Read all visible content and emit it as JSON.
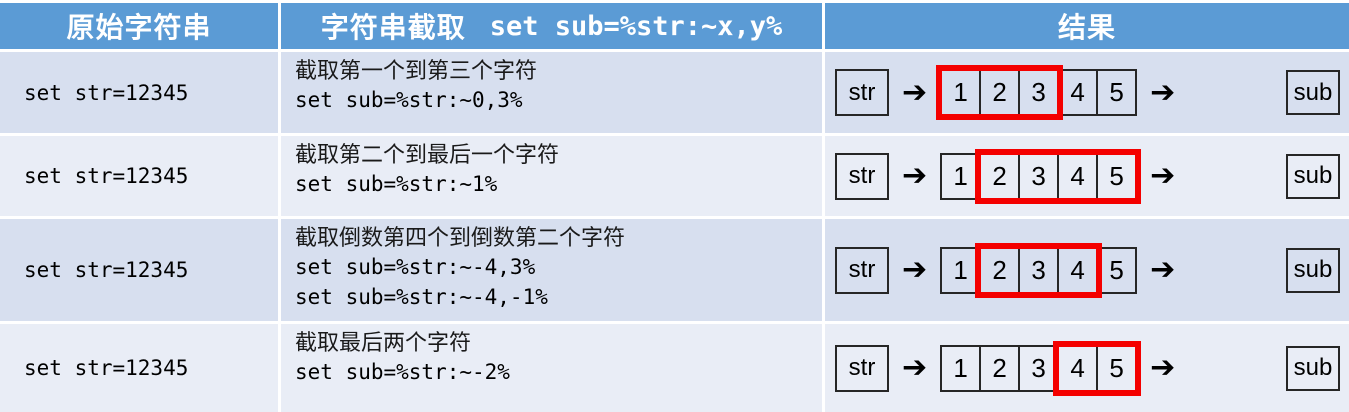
{
  "colors": {
    "header_bg": "#5b9bd5",
    "header_text": "#ffffff",
    "row_band_light_blue": "#d7dfef",
    "row_band_pale": "#e9edf6",
    "divider": "#ffffff",
    "box_border": "#262626",
    "highlight_border": "#f40000"
  },
  "icons": {
    "arrow_right": "➔"
  },
  "table": {
    "header": {
      "col_original": "原始字符串",
      "col_extract_label": "字符串截取",
      "col_extract_code": "set sub=%str:~x,y%",
      "col_result": "结果"
    },
    "rows": [
      {
        "original": "set str=12345",
        "description": "截取第一个到第三个字符",
        "commands": [
          "set sub=%str:~0,3%"
        ],
        "result": {
          "source_label": "str",
          "target_label": "sub",
          "digits": [
            "1",
            "2",
            "3",
            "4",
            "5"
          ],
          "highlight_from": 1,
          "highlight_to": 3
        }
      },
      {
        "original": "set str=12345",
        "description": "截取第二个到最后一个字符",
        "commands": [
          "set sub=%str:~1%"
        ],
        "result": {
          "source_label": "str",
          "target_label": "sub",
          "digits": [
            "1",
            "2",
            "3",
            "4",
            "5"
          ],
          "highlight_from": 2,
          "highlight_to": 5
        }
      },
      {
        "original": "set str=12345",
        "description": "截取倒数第四个到倒数第二个字符",
        "commands": [
          "set sub=%str:~-4,3%",
          "set sub=%str:~-4,-1%"
        ],
        "result": {
          "source_label": "str",
          "target_label": "sub",
          "digits": [
            "1",
            "2",
            "3",
            "4",
            "5"
          ],
          "highlight_from": 2,
          "highlight_to": 4
        }
      },
      {
        "original": "set str=12345",
        "description": "截取最后两个字符",
        "commands": [
          "set sub=%str:~-2%"
        ],
        "result": {
          "source_label": "str",
          "target_label": "sub",
          "digits": [
            "1",
            "2",
            "3",
            "4",
            "5"
          ],
          "highlight_from": 4,
          "highlight_to": 5
        }
      }
    ]
  }
}
